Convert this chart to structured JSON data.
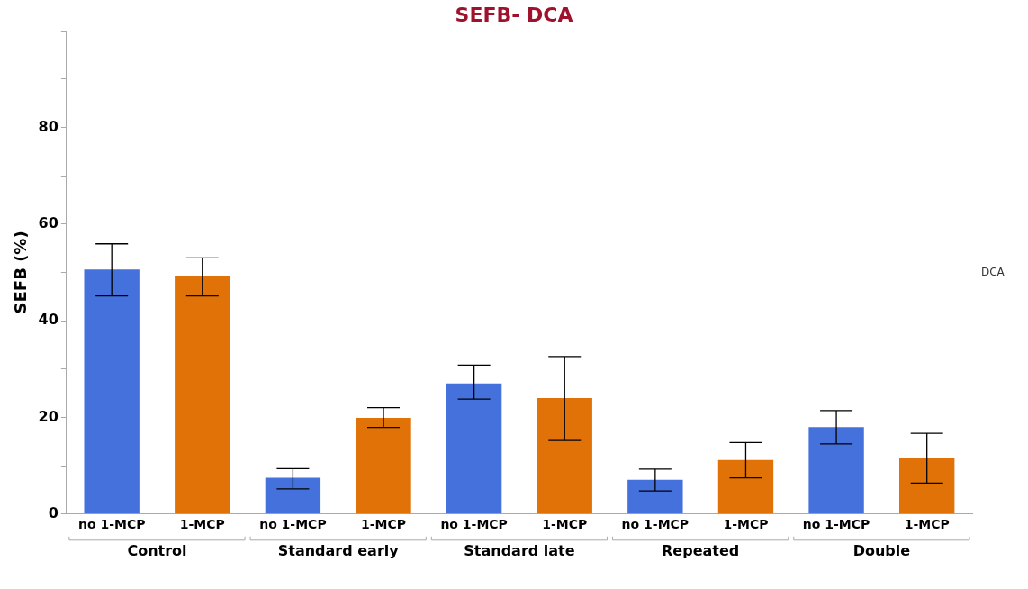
{
  "chart_data": {
    "type": "bar",
    "title": "SEFB- DCA",
    "ylabel": "SEFB (%)",
    "categories": [
      "Control",
      "Standard early",
      "Standard late",
      "Repeated",
      "Double"
    ],
    "series": [
      {
        "name": "no 1-MCP",
        "color": "#4471dc",
        "values": [
          50.6,
          7.5,
          27.0,
          7.1,
          18.0
        ],
        "errors": [
          [
            45.1,
            55.9
          ],
          [
            5.2,
            9.4
          ],
          [
            23.8,
            30.8
          ],
          [
            4.8,
            9.3
          ],
          [
            14.5,
            21.4
          ]
        ]
      },
      {
        "name": "1-MCP",
        "color": "#e17208",
        "values": [
          49.2,
          19.9,
          24.0,
          11.2,
          11.6
        ],
        "errors": [
          [
            45.1,
            53.0
          ],
          [
            17.9,
            22.0
          ],
          [
            15.2,
            32.6
          ],
          [
            7.5,
            14.8
          ],
          [
            6.4,
            16.7
          ]
        ]
      }
    ],
    "ylim": [
      0,
      100
    ],
    "yticks": [
      0,
      {
        "value": 10,
        "label": null
      },
      20,
      {
        "value": 30,
        "label": null
      },
      40,
      {
        "value": 50,
        "label": null
      },
      60,
      {
        "value": 70,
        "label": null
      },
      80,
      {
        "value": 90,
        "label": null
      },
      {
        "value": 100,
        "label": null
      }
    ],
    "annotations": [
      "DCA"
    ],
    "grid": false,
    "legend": false
  }
}
